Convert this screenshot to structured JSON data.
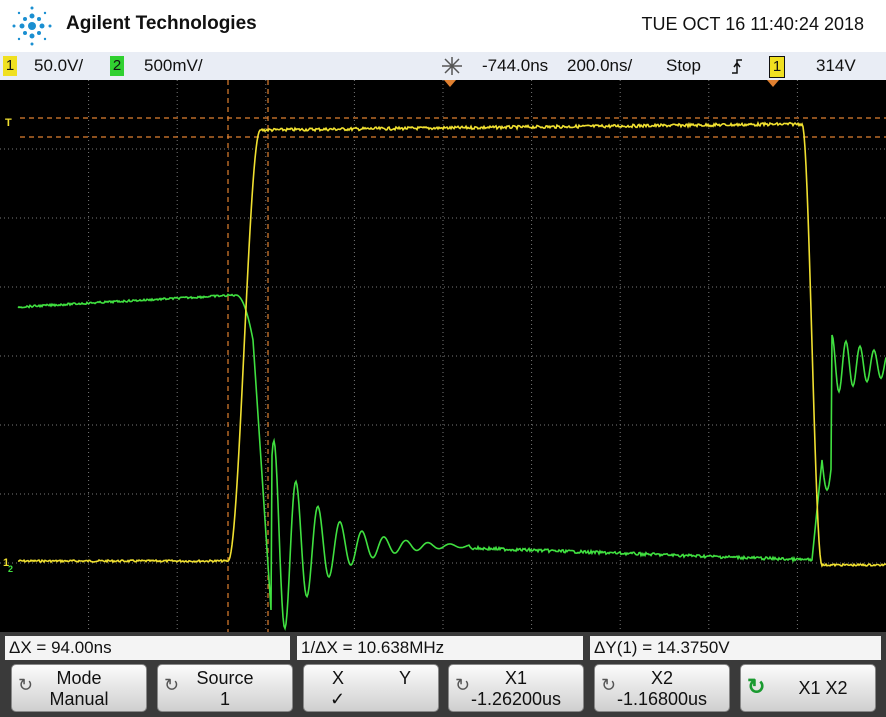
{
  "header": {
    "brand": "Agilent Technologies",
    "datetime": "TUE OCT 16 11:40:24 2018"
  },
  "status_bar": {
    "ch1_label": "1",
    "ch1_scale": "50.0V/",
    "ch2_label": "2",
    "ch2_scale": "500mV/",
    "delay": "-744.0ns",
    "timebase": "200.0ns/",
    "run_state": "Stop",
    "trigger_source": "1",
    "trigger_level": "314V"
  },
  "markers": {
    "trigger": "T",
    "ch1_ground": "1",
    "ch2_ground": "2"
  },
  "measurements": [
    "ΔX = 94.00ns",
    "1/ΔX = 10.638MHz",
    "ΔY(1) = 14.3750V"
  ],
  "softkeys": [
    {
      "label": "Mode",
      "value": "Manual"
    },
    {
      "label": "Source",
      "value": "1"
    },
    {
      "options": [
        "X",
        "Y"
      ],
      "selected": "✓"
    },
    {
      "label": "X1",
      "value": "-1.26200us"
    },
    {
      "label": "X2",
      "value": "-1.16800us"
    },
    {
      "label": "X1 X2"
    }
  ]
}
